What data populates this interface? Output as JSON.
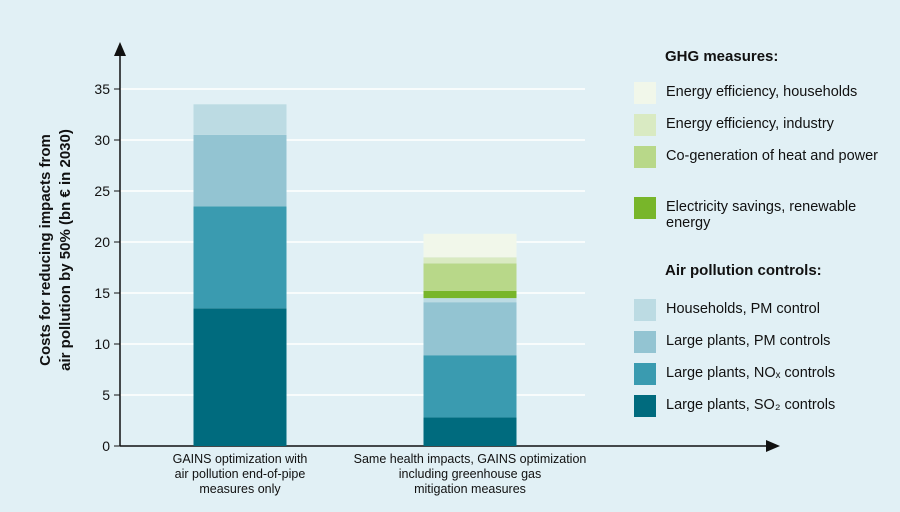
{
  "chart_data": {
    "type": "stacked_bar",
    "ylabel": [
      "Costs for reducing impacts from",
      "air pollution by 50% (bn € in 2030)"
    ],
    "categories": [
      [
        "GAINS optimization with",
        "air pollution end-of-pipe",
        "measures only"
      ],
      [
        "Same health impacts, GAINS optimization",
        "including greenhouse gas",
        "mitigation measures"
      ]
    ],
    "ylim": [
      0,
      35
    ],
    "yticks": [
      0,
      5,
      10,
      15,
      20,
      25,
      30,
      35
    ],
    "grid": true,
    "groups": [
      {
        "title": "GHG measures:",
        "series": [
          {
            "name": "Energy efficiency, households",
            "color": "#f1f7ea",
            "values": [
              0,
              2.3
            ]
          },
          {
            "name": "Energy efficiency, industry",
            "color": "#d9eac2",
            "values": [
              0,
              0.6
            ]
          },
          {
            "name": "Co-generation of heat and power",
            "color": "#b8d889",
            "values": [
              0,
              2.7
            ]
          },
          {
            "name": "Electricity savings, renewable energy",
            "color": "#78b62a",
            "values": [
              0,
              0.7
            ]
          }
        ]
      },
      {
        "title": "Air pollution controls:",
        "series": [
          {
            "name": "Households, PM control",
            "color": "#bcdbe3",
            "values": [
              3,
              0.4
            ]
          },
          {
            "name": "Large plants, PM controls",
            "color": "#93c4d2",
            "values": [
              7,
              5.2
            ]
          },
          {
            "name": "Large plants, NOₓ controls",
            "color": "#3a9bb0",
            "values": [
              10,
              6.1
            ]
          },
          {
            "name": "Large plants, SO₂ controls",
            "color": "#006b7e",
            "values": [
              13.5,
              2.8
            ]
          }
        ]
      }
    ]
  }
}
